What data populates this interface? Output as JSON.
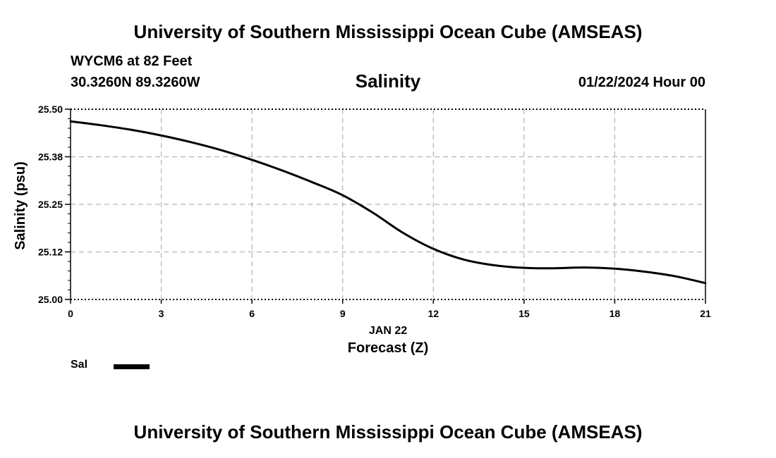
{
  "header": {
    "title": "University of Southern Mississippi Ocean Cube (AMSEAS)",
    "station": "WYCM6 at 82 Feet",
    "coords": "30.3260N  89.3260W",
    "chart_title": "Salinity",
    "datetime": "01/22/2024 Hour 00"
  },
  "footer": {
    "title": "University of Southern Mississippi Ocean Cube (AMSEAS)"
  },
  "legend": {
    "label": "Sal"
  },
  "chart_data": {
    "type": "line",
    "title": "Salinity",
    "xlabel": "Forecast (Z)",
    "xlabel_date": "JAN 22",
    "ylabel": "Salinity (psu)",
    "xlim": [
      0,
      21
    ],
    "ylim": [
      25.0,
      25.5
    ],
    "xticks": [
      0,
      3,
      6,
      9,
      12,
      15,
      18,
      21
    ],
    "xtick_labels": [
      "0",
      "3",
      "6",
      "9",
      "12",
      "15",
      "18",
      "21"
    ],
    "yticks": [
      25.0,
      25.125,
      25.25,
      25.375,
      25.5
    ],
    "ytick_labels": [
      "25.00",
      "25.12",
      "25.25",
      "25.38",
      "25.50"
    ],
    "grid": true,
    "series": [
      {
        "name": "Sal",
        "color": "#000000",
        "x": [
          0,
          1,
          2,
          3,
          4,
          5,
          6,
          7,
          8,
          9,
          10,
          11,
          12,
          13,
          14,
          15,
          16,
          17,
          18,
          19,
          20,
          21
        ],
        "values": [
          25.468,
          25.458,
          25.446,
          25.431,
          25.413,
          25.392,
          25.367,
          25.339,
          25.308,
          25.274,
          25.228,
          25.175,
          25.133,
          25.105,
          25.09,
          25.083,
          25.082,
          25.084,
          25.081,
          25.073,
          25.061,
          25.043
        ]
      }
    ]
  }
}
